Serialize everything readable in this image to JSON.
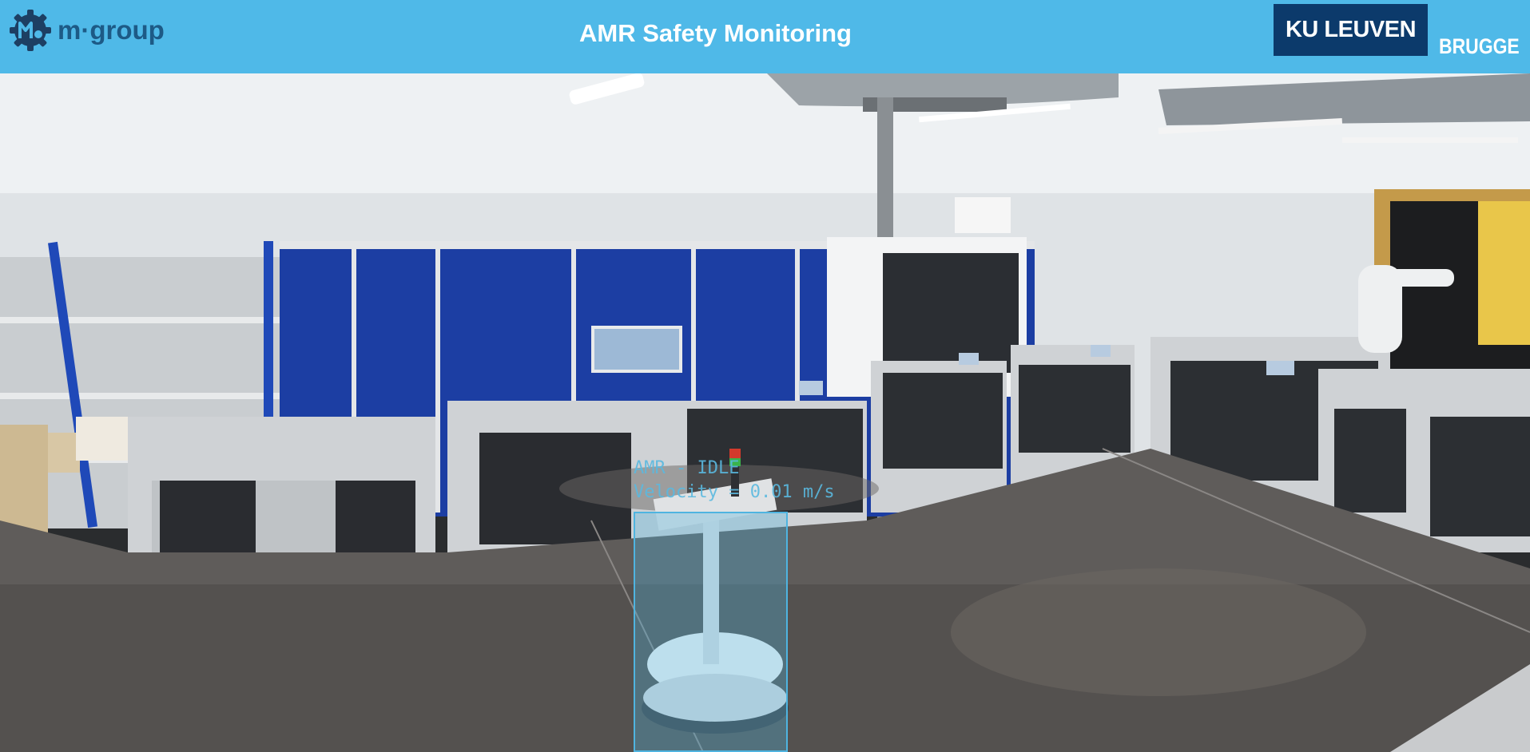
{
  "header": {
    "org_logo": {
      "icon": "gear-m-icon",
      "text": "m·group",
      "color": "#1d5a86"
    },
    "title": "AMR Safety Monitoring",
    "university_logo": {
      "name": "KU LEUVEN",
      "campus": "BRUGGE",
      "color": "#0c3a6b"
    },
    "background": "#4fb9e8"
  },
  "camera": {
    "scene": "lab-overview-camera-feed"
  },
  "detection": {
    "label": "AMR",
    "status_line": "AMR - IDLE",
    "velocity_line": "Velocity = 0.01 m/s",
    "box_color": "#4fb4e0"
  }
}
